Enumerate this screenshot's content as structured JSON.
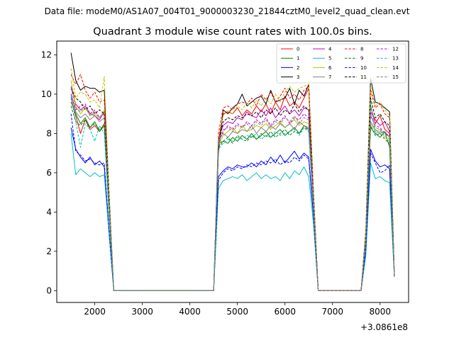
{
  "figure": {
    "suptitle": "Data file: modeM0/AS1A07_004T01_9000003230_21844cztM0_level2_quad_clean.evt"
  },
  "chart_data": {
    "type": "line",
    "title": "Quadrant 3 module wise count rates with 100.0s bins.",
    "xlabel": "",
    "ylabel": "",
    "x_offset_label": "+3.0861e8",
    "xlim": [
      1200,
      8600
    ],
    "ylim": [
      -0.6,
      12.7
    ],
    "xticks": [
      2000,
      3000,
      4000,
      5000,
      6000,
      7000,
      8000
    ],
    "yticks": [
      0,
      2,
      4,
      6,
      8,
      10,
      12
    ],
    "grid": false,
    "legend_position": "top-right",
    "legend_columns": 4,
    "segments": [
      {
        "x": [
          1500,
          1600,
          1700,
          1800,
          1900,
          2000,
          2100,
          2200,
          2300,
          2400,
          2500
        ]
      },
      {
        "x": [
          4500,
          4600,
          4700,
          4800,
          4900,
          5000,
          5100,
          5200,
          5300,
          5400,
          5500,
          5600,
          5700,
          5800,
          5900,
          6000,
          6100,
          6200,
          6300,
          6400,
          6500,
          6600,
          6700
        ]
      },
      {
        "x": [
          7600,
          7700,
          7800,
          7900,
          8000,
          8100,
          8200,
          8300
        ]
      }
    ],
    "series": [
      {
        "name": "0",
        "color": "#ff0000",
        "dashed": false,
        "values": [
          [
            9.8,
            8.9,
            8.0,
            8.7,
            8.2,
            8.4,
            8.1,
            8.5,
            4.0,
            0.0,
            0.0
          ],
          [
            0.0,
            7.6,
            9.0,
            9.1,
            9.0,
            9.3,
            8.9,
            9.2,
            9.0,
            9.4,
            9.1,
            9.5,
            9.0,
            9.6,
            9.2,
            9.9,
            9.4,
            9.6,
            9.3,
            9.8,
            10.3,
            4.6,
            0.0
          ],
          [
            0.0,
            3.0,
            9.4,
            8.5,
            8.9,
            8.2,
            8.0,
            0.8
          ]
        ]
      },
      {
        "name": "1",
        "color": "#008000",
        "dashed": false,
        "values": [
          [
            9.6,
            9.0,
            8.5,
            8.8,
            8.3,
            8.6,
            8.1,
            8.4,
            4.0,
            0.0,
            0.0
          ],
          [
            0.0,
            7.5,
            7.6,
            7.5,
            7.8,
            7.6,
            7.9,
            7.7,
            8.0,
            7.7,
            7.9,
            8.1,
            7.8,
            8.0,
            8.2,
            7.9,
            8.1,
            8.3,
            8.0,
            8.4,
            8.2,
            4.3,
            0.0
          ],
          [
            0.0,
            2.6,
            8.3,
            8.0,
            7.8,
            8.1,
            7.3,
            0.8
          ]
        ]
      },
      {
        "name": "2",
        "color": "#0000ff",
        "dashed": false,
        "values": [
          [
            8.3,
            7.2,
            6.8,
            6.5,
            6.8,
            6.4,
            6.6,
            6.3,
            3.0,
            0.0,
            0.0
          ],
          [
            0.0,
            5.8,
            6.1,
            6.3,
            6.2,
            6.4,
            6.3,
            6.3,
            6.5,
            6.3,
            6.6,
            6.4,
            6.8,
            6.5,
            6.9,
            6.5,
            6.8,
            7.1,
            6.7,
            7.0,
            6.8,
            3.8,
            0.0
          ],
          [
            0.0,
            2.0,
            7.2,
            6.6,
            6.3,
            6.4,
            6.2,
            0.7
          ]
        ]
      },
      {
        "name": "3",
        "color": "#000000",
        "dashed": false,
        "values": [
          [
            12.1,
            10.7,
            10.2,
            10.4,
            10.3,
            10.3,
            10.1,
            10.2,
            5.0,
            0.0,
            0.0
          ],
          [
            0.0,
            7.0,
            9.2,
            9.0,
            9.3,
            9.5,
            10.0,
            9.4,
            9.6,
            9.8,
            9.9,
            9.5,
            10.2,
            9.6,
            9.7,
            9.8,
            10.3,
            9.5,
            10.2,
            9.9,
            10.5,
            5.0,
            0.0
          ],
          [
            0.0,
            3.0,
            10.8,
            9.6,
            9.5,
            9.3,
            9.1,
            0.9
          ]
        ]
      },
      {
        "name": "4",
        "color": "#bf00bf",
        "dashed": false,
        "values": [
          [
            10.4,
            9.5,
            9.2,
            9.4,
            9.0,
            8.9,
            8.7,
            9.1,
            4.5,
            0.0,
            0.0
          ],
          [
            0.0,
            7.8,
            8.4,
            8.6,
            8.5,
            8.8,
            8.7,
            9.1,
            8.9,
            8.8,
            9.2,
            8.9,
            9.3,
            8.8,
            9.1,
            9.4,
            9.0,
            9.2,
            8.9,
            9.3,
            9.2,
            4.6,
            0.0
          ],
          [
            0.0,
            2.8,
            9.1,
            8.7,
            8.4,
            8.6,
            8.1,
            0.8
          ]
        ]
      },
      {
        "name": "5",
        "color": "#00bfbf",
        "dashed": false,
        "values": [
          [
            8.0,
            5.9,
            6.2,
            6.0,
            5.8,
            6.0,
            5.8,
            5.9,
            2.9,
            0.0,
            0.0
          ],
          [
            0.0,
            5.2,
            5.6,
            5.7,
            5.8,
            5.7,
            5.9,
            5.6,
            5.8,
            6.0,
            5.7,
            5.9,
            5.7,
            5.8,
            5.6,
            6.0,
            5.7,
            6.1,
            5.9,
            6.3,
            5.8,
            3.4,
            0.0
          ],
          [
            0.0,
            1.8,
            6.5,
            5.7,
            5.8,
            5.6,
            5.5,
            0.7
          ]
        ]
      },
      {
        "name": "6",
        "color": "#bfbf00",
        "dashed": false,
        "values": [
          [
            10.7,
            9.4,
            9.0,
            9.3,
            8.9,
            9.0,
            8.8,
            9.2,
            4.5,
            0.0,
            0.0
          ],
          [
            0.0,
            7.4,
            7.9,
            8.1,
            8.3,
            8.0,
            8.4,
            8.1,
            8.2,
            8.4,
            8.3,
            8.5,
            8.2,
            8.4,
            8.6,
            8.3,
            8.5,
            8.7,
            8.4,
            8.6,
            8.5,
            4.3,
            0.0
          ],
          [
            0.0,
            2.6,
            8.5,
            8.1,
            8.2,
            7.8,
            7.6,
            0.8
          ]
        ]
      },
      {
        "name": "7",
        "color": "#808080",
        "dashed": false,
        "values": [
          [
            10.0,
            9.1,
            8.8,
            9.0,
            8.7,
            8.9,
            8.6,
            8.8,
            4.3,
            0.0,
            0.0
          ],
          [
            0.0,
            7.7,
            8.0,
            7.8,
            8.1,
            8.0,
            8.2,
            8.1,
            8.4,
            8.0,
            8.3,
            8.1,
            8.4,
            8.2,
            8.5,
            8.3,
            8.5,
            8.2,
            8.6,
            8.4,
            8.3,
            4.2,
            0.0
          ],
          [
            0.0,
            2.7,
            8.6,
            8.2,
            8.0,
            8.1,
            7.8,
            0.8
          ]
        ]
      },
      {
        "name": "8",
        "color": "#ff0000",
        "dashed": true,
        "values": [
          [
            11.0,
            10.5,
            11.0,
            10.2,
            9.8,
            10.1,
            9.6,
            9.7,
            4.8,
            0.0,
            0.0
          ],
          [
            0.0,
            8.0,
            9.3,
            9.4,
            9.2,
            9.5,
            9.6,
            9.5,
            9.8,
            9.4,
            10.0,
            9.7,
            10.1,
            9.6,
            9.9,
            10.3,
            9.8,
            10.0,
            9.7,
            10.2,
            10.4,
            5.0,
            0.0
          ],
          [
            0.0,
            3.1,
            10.2,
            9.3,
            9.5,
            9.0,
            8.8,
            0.9
          ]
        ]
      },
      {
        "name": "9",
        "color": "#008000",
        "dashed": true,
        "values": [
          [
            9.4,
            8.6,
            8.4,
            8.7,
            8.3,
            8.5,
            8.2,
            8.4,
            4.0,
            0.0,
            0.0
          ],
          [
            0.0,
            7.3,
            7.6,
            7.8,
            7.5,
            7.9,
            7.7,
            7.6,
            7.9,
            7.7,
            8.0,
            7.8,
            8.1,
            7.8,
            8.0,
            8.2,
            7.9,
            8.1,
            8.0,
            8.3,
            8.1,
            4.2,
            0.0
          ],
          [
            0.0,
            2.5,
            8.4,
            7.9,
            8.0,
            7.7,
            7.5,
            0.8
          ]
        ]
      },
      {
        "name": "10",
        "color": "#0000ff",
        "dashed": true,
        "values": [
          [
            9.0,
            7.1,
            6.9,
            6.6,
            6.7,
            6.5,
            6.4,
            6.5,
            3.1,
            0.0,
            0.0
          ],
          [
            0.0,
            5.6,
            6.0,
            6.2,
            6.1,
            6.3,
            6.2,
            6.4,
            6.3,
            6.5,
            6.4,
            6.6,
            6.5,
            6.7,
            6.4,
            6.6,
            6.5,
            6.8,
            6.6,
            6.9,
            6.7,
            3.8,
            0.0
          ],
          [
            0.0,
            2.1,
            7.0,
            6.5,
            6.0,
            6.1,
            6.4,
            0.7
          ]
        ]
      },
      {
        "name": "11",
        "color": "#000000",
        "dashed": true,
        "values": [
          [
            10.3,
            9.8,
            9.6,
            9.2,
            9.4,
            9.0,
            9.2,
            9.0,
            4.5,
            0.0,
            0.0
          ],
          [
            0.0,
            7.6,
            8.6,
            8.8,
            8.7,
            8.9,
            8.8,
            9.0,
            8.9,
            9.1,
            8.8,
            9.2,
            9.0,
            9.3,
            8.9,
            9.2,
            9.0,
            9.5,
            9.1,
            9.4,
            9.2,
            4.6,
            0.0
          ],
          [
            0.0,
            2.9,
            9.8,
            8.8,
            9.0,
            8.6,
            8.4,
            0.8
          ]
        ]
      },
      {
        "name": "12",
        "color": "#bf00bf",
        "dashed": true,
        "values": [
          [
            10.0,
            9.2,
            9.4,
            9.5,
            9.0,
            9.2,
            8.8,
            9.0,
            4.4,
            0.0,
            0.0
          ],
          [
            0.0,
            7.5,
            8.1,
            8.4,
            8.2,
            8.5,
            8.3,
            8.6,
            8.4,
            8.7,
            8.5,
            8.8,
            8.4,
            8.7,
            8.6,
            8.9,
            8.5,
            8.8,
            8.7,
            9.0,
            8.8,
            4.4,
            0.0
          ],
          [
            0.0,
            2.7,
            8.9,
            8.4,
            8.3,
            8.0,
            7.9,
            0.8
          ]
        ]
      },
      {
        "name": "13",
        "color": "#00bfbf",
        "dashed": true,
        "values": [
          [
            9.9,
            8.6,
            7.3,
            8.5,
            8.2,
            7.6,
            8.4,
            8.0,
            4.0,
            0.0,
            0.0
          ],
          [
            0.0,
            7.2,
            7.5,
            7.7,
            7.6,
            7.8,
            7.7,
            7.9,
            7.8,
            8.0,
            7.7,
            7.9,
            7.8,
            8.1,
            7.9,
            8.0,
            8.1,
            8.2,
            7.9,
            8.3,
            8.2,
            4.1,
            0.0
          ],
          [
            0.0,
            2.6,
            9.6,
            8.0,
            8.1,
            7.9,
            7.7,
            0.8
          ]
        ]
      },
      {
        "name": "14",
        "color": "#bfbf00",
        "dashed": true,
        "values": [
          [
            11.3,
            9.8,
            10.1,
            10.0,
            9.6,
            9.7,
            9.3,
            10.9,
            5.0,
            0.0,
            0.0
          ],
          [
            0.0,
            7.8,
            8.9,
            9.2,
            9.0,
            9.4,
            9.2,
            9.6,
            9.3,
            9.7,
            9.4,
            9.8,
            9.5,
            10.0,
            9.6,
            10.1,
            10.4,
            10.1,
            10.3,
            10.4,
            10.5,
            5.0,
            0.0
          ],
          [
            0.0,
            3.1,
            10.4,
            9.4,
            9.6,
            9.2,
            8.9,
            0.7
          ]
        ]
      },
      {
        "name": "15",
        "color": "#808080",
        "dashed": true,
        "values": [
          [
            10.3,
            9.3,
            9.1,
            9.4,
            8.9,
            9.1,
            8.8,
            9.0,
            4.4,
            0.0,
            0.0
          ],
          [
            0.0,
            7.7,
            8.2,
            8.3,
            8.1,
            8.4,
            8.3,
            8.5,
            8.2,
            8.6,
            8.4,
            8.7,
            8.3,
            8.6,
            8.5,
            8.8,
            8.6,
            8.9,
            8.5,
            8.8,
            8.7,
            4.4,
            0.0
          ],
          [
            0.0,
            2.7,
            9.0,
            8.3,
            8.2,
            8.0,
            7.8,
            0.8
          ]
        ]
      }
    ]
  }
}
